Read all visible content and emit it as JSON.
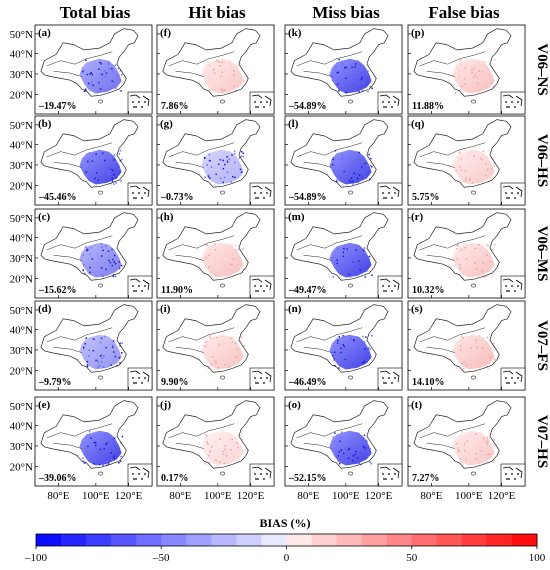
{
  "chart_data": {
    "type": "heatmap",
    "columns": [
      "Total bias",
      "Hit bias",
      "Miss bias",
      "False bias"
    ],
    "rows": [
      "V06–NS",
      "V06–HS",
      "V06–MS",
      "V07–FS",
      "V07–HS"
    ],
    "panels": [
      {
        "label": "(a)",
        "row": 0,
        "col": 0,
        "value": "–19.47%"
      },
      {
        "label": "(f)",
        "row": 0,
        "col": 1,
        "value": "7.86%"
      },
      {
        "label": "(k)",
        "row": 0,
        "col": 2,
        "value": "–54.89%"
      },
      {
        "label": "(p)",
        "row": 0,
        "col": 3,
        "value": "11.88%"
      },
      {
        "label": "(b)",
        "row": 1,
        "col": 0,
        "value": "–45.46%"
      },
      {
        "label": "(g)",
        "row": 1,
        "col": 1,
        "value": "–0.73%"
      },
      {
        "label": "(l)",
        "row": 1,
        "col": 2,
        "value": "–54.89%"
      },
      {
        "label": "(q)",
        "row": 1,
        "col": 3,
        "value": "5.75%"
      },
      {
        "label": "(c)",
        "row": 2,
        "col": 0,
        "value": "–15.62%"
      },
      {
        "label": "(h)",
        "row": 2,
        "col": 1,
        "value": "11.90%"
      },
      {
        "label": "(m)",
        "row": 2,
        "col": 2,
        "value": "–49.47%"
      },
      {
        "label": "(r)",
        "row": 2,
        "col": 3,
        "value": "10.32%"
      },
      {
        "label": "(d)",
        "row": 3,
        "col": 0,
        "value": "–9.79%"
      },
      {
        "label": "(i)",
        "row": 3,
        "col": 1,
        "value": "9.90%"
      },
      {
        "label": "(n)",
        "row": 3,
        "col": 2,
        "value": "–46.49%"
      },
      {
        "label": "(s)",
        "row": 3,
        "col": 3,
        "value": "14.10%"
      },
      {
        "label": "(e)",
        "row": 4,
        "col": 0,
        "value": "–39.06%"
      },
      {
        "label": "(j)",
        "row": 4,
        "col": 1,
        "value": "0.17%"
      },
      {
        "label": "(o)",
        "row": 4,
        "col": 2,
        "value": "–52.15%"
      },
      {
        "label": "(t)",
        "row": 4,
        "col": 3,
        "value": "7.27%"
      }
    ],
    "y_ticks": [
      "50°N",
      "40°N",
      "30°N",
      "20°N"
    ],
    "x_ticks": [
      "80°E",
      "100°E",
      "120°E"
    ],
    "colorbar": {
      "title": "BIAS (%)",
      "range": [
        -100,
        100
      ],
      "ticks": [
        "–100",
        "–50",
        "0",
        "50",
        "100"
      ],
      "low_color": "#0000ff",
      "mid_color": "#ffffff",
      "high_color": "#ff0000"
    }
  }
}
